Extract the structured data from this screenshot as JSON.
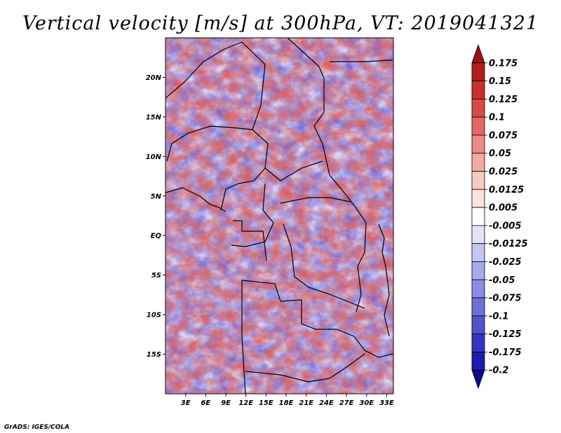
{
  "chart_data": {
    "type": "heatmap",
    "title": "Vertical velocity [m/s] at 300hPa, VT: 2019041321",
    "xlabel": "",
    "ylabel": "",
    "x_ticks": [
      "3E",
      "6E",
      "9E",
      "12E",
      "15E",
      "18E",
      "21E",
      "24E",
      "27E",
      "30E",
      "33E"
    ],
    "y_ticks": [
      "20N",
      "15N",
      "10N",
      "5N",
      "EQ",
      "5S",
      "10S",
      "15S"
    ],
    "x_tick_values": [
      3,
      6,
      9,
      12,
      15,
      18,
      21,
      24,
      27,
      30,
      33
    ],
    "y_tick_values": [
      20,
      15,
      10,
      5,
      0,
      -5,
      -10,
      -15
    ],
    "xlim": [
      0,
      34
    ],
    "ylim": [
      -20,
      25
    ],
    "colorbar": {
      "labels": [
        "0.175",
        "0.15",
        "0.125",
        "0.1",
        "0.075",
        "0.05",
        "0.025",
        "0.0125",
        "0.005",
        "-0.005",
        "-0.0125",
        "-0.025",
        "-0.05",
        "-0.075",
        "-0.1",
        "-0.125",
        "-0.175",
        "-0.2"
      ],
      "colors": [
        "#a00f14",
        "#b71c1c",
        "#c9302c",
        "#d84a45",
        "#e06a63",
        "#e88d86",
        "#f0aaa3",
        "#f6c9c4",
        "#fbe3e0",
        "#ffffff",
        "#e2e2fb",
        "#c5c5f4",
        "#a9a9ec",
        "#8c8ce4",
        "#6f6fda",
        "#5252cf",
        "#3535c3",
        "#1c1cb0",
        "#0a0a8f"
      ]
    },
    "credit": "GrADS: IGES/COLA"
  }
}
